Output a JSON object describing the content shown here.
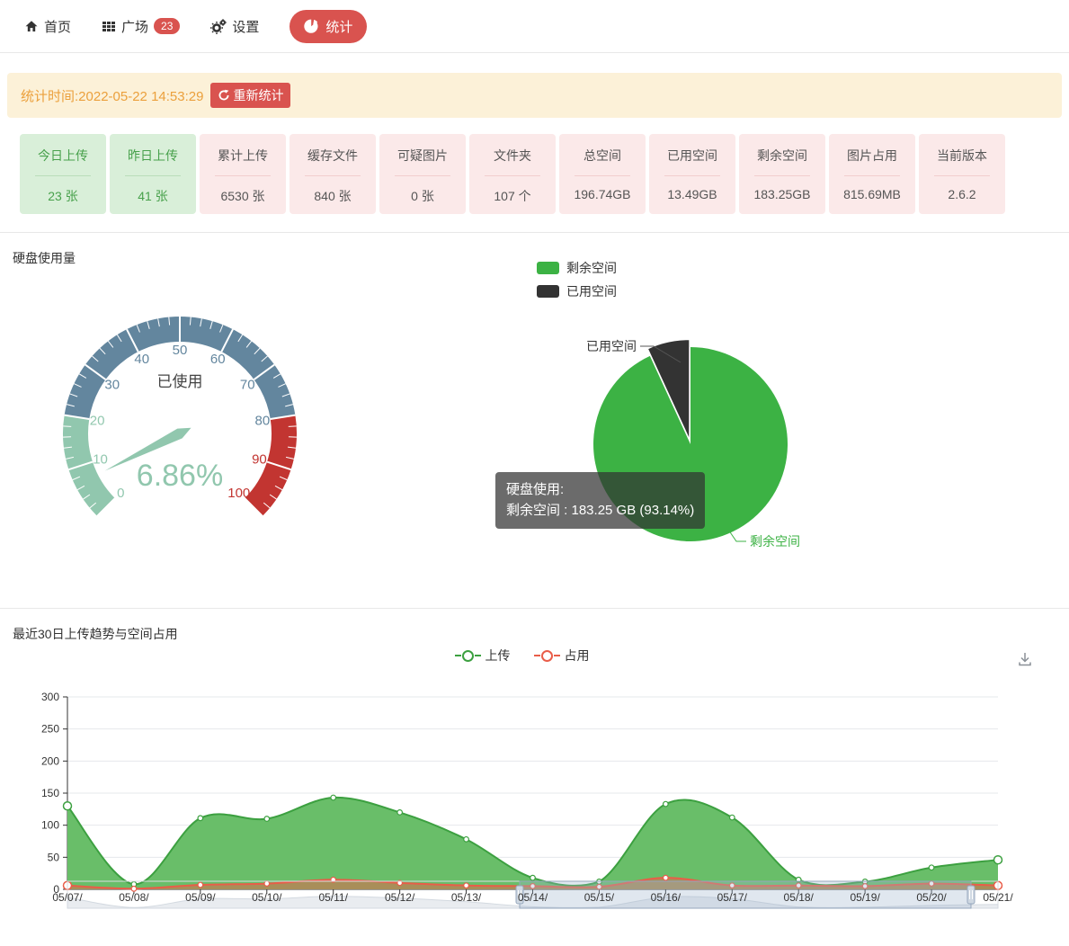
{
  "nav": {
    "items": [
      {
        "label": "首页",
        "icon": "home"
      },
      {
        "label": "广场",
        "icon": "grid",
        "badge": "23"
      },
      {
        "label": "设置",
        "icon": "gear"
      },
      {
        "label": "统计",
        "icon": "pie",
        "active": true
      }
    ]
  },
  "banner": {
    "time_label": "统计时间:2022-05-22 14:53:29",
    "refresh_button": "重新统计"
  },
  "stats_cards": [
    {
      "title": "今日上传",
      "value": "23 张",
      "style": "green"
    },
    {
      "title": "昨日上传",
      "value": "41 张",
      "style": "green"
    },
    {
      "title": "累计上传",
      "value": "6530 张",
      "style": "pink"
    },
    {
      "title": "缓存文件",
      "value": "840 张",
      "style": "pink"
    },
    {
      "title": "可疑图片",
      "value": "0 张",
      "style": "pink"
    },
    {
      "title": "文件夹",
      "value": "107 个",
      "style": "pink"
    },
    {
      "title": "总空间",
      "value": "196.74GB",
      "style": "pink"
    },
    {
      "title": "已用空间",
      "value": "13.49GB",
      "style": "pink"
    },
    {
      "title": "剩余空间",
      "value": "183.25GB",
      "style": "pink"
    },
    {
      "title": "图片占用",
      "value": "815.69MB",
      "style": "pink"
    },
    {
      "title": "当前版本",
      "value": "2.6.2",
      "style": "pink"
    }
  ],
  "disk": {
    "section_title": "硬盘使用量",
    "legend": [
      {
        "label": "剩余空间",
        "color": "#3cb244"
      },
      {
        "label": "已用空间",
        "color": "#333333"
      }
    ],
    "tooltip": {
      "title": "硬盘使用:",
      "line": "剩余空间 : 183.25 GB (93.14%)"
    }
  },
  "trend": {
    "section_title": "最近30日上传趋势与空间占用",
    "legend": [
      {
        "label": "上传",
        "color": "#3ca040"
      },
      {
        "label": "占用",
        "color": "#e95d49"
      }
    ]
  },
  "chart_data": [
    {
      "type": "gauge",
      "title": "已使用",
      "value": 6.86,
      "detail": "6.86%",
      "min": 0,
      "max": 100,
      "tick_step": 10,
      "bands": [
        {
          "from": 0,
          "to": 20,
          "color": "#91c7ae"
        },
        {
          "from": 20,
          "to": 80,
          "color": "#63869e"
        },
        {
          "from": 80,
          "to": 100,
          "color": "#c23531"
        }
      ]
    },
    {
      "type": "pie",
      "title": "硬盘使用",
      "slices": [
        {
          "label": "剩余空间",
          "value": "183.25 GB",
          "percent": 93.14,
          "color": "#3cb244"
        },
        {
          "label": "已用空间",
          "value": "13.49 GB",
          "percent": 6.86,
          "color": "#333333",
          "selected": true
        }
      ]
    },
    {
      "type": "area",
      "title": "最近30日上传趋势与空间占用",
      "categories": [
        "05/07/",
        "05/08/",
        "05/09/",
        "05/10/",
        "05/11/",
        "05/12/",
        "05/13/",
        "05/14/",
        "05/15/",
        "05/16/",
        "05/17/",
        "05/18/",
        "05/19/",
        "05/20/",
        "05/21/"
      ],
      "series": [
        {
          "name": "上传",
          "color": "#3ca040",
          "fill": "#69be69",
          "values": [
            130,
            8,
            111,
            110,
            143,
            120,
            78,
            18,
            12,
            133,
            112,
            15,
            12,
            34,
            46
          ]
        },
        {
          "name": "占用",
          "color": "#e95d49",
          "fill": "rgba(233,93,73,0.5)",
          "values": [
            6,
            1,
            7,
            9,
            15,
            10,
            6,
            5,
            4,
            18,
            6,
            6,
            5,
            9,
            6
          ]
        }
      ],
      "ylim": [
        0,
        300
      ],
      "yticks": [
        0,
        50,
        100,
        150,
        200,
        250,
        300
      ],
      "legend_position": "top-center",
      "grid": true,
      "datazoom": {
        "start_frac": 0.486,
        "end_frac": 0.971
      }
    }
  ]
}
